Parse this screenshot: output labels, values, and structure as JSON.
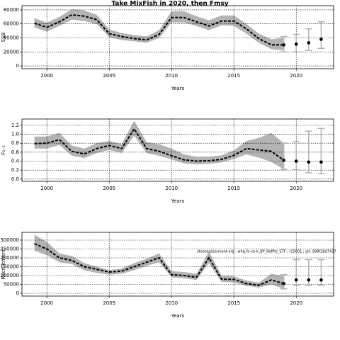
{
  "title": "Take MixFish in 2020, then Fmsy",
  "chart_data": [
    {
      "type": "line",
      "ylabel": "SSB",
      "xlabel": "Years",
      "xlim": [
        1998,
        2023
      ],
      "xticks": [
        2000,
        2005,
        2010,
        2015,
        2020
      ],
      "ylim": [
        -4000,
        86000
      ],
      "yticks": [
        0,
        20000,
        40000,
        60000,
        80000
      ],
      "grid": true,
      "band_color": "#b3b3b3",
      "line_color": "#000000",
      "point_color": "#000000",
      "errbar_color": "#b3b3b3",
      "x": [
        1999,
        2000,
        2001,
        2002,
        2003,
        2004,
        2005,
        2006,
        2007,
        2008,
        2009,
        2010,
        2011,
        2012,
        2013,
        2014,
        2015,
        2016,
        2017,
        2018,
        2019
      ],
      "values": [
        61000,
        55000,
        63000,
        73000,
        71000,
        66000,
        46000,
        42000,
        39000,
        37000,
        45000,
        69000,
        69000,
        63000,
        57000,
        64000,
        64000,
        53000,
        39000,
        30000,
        30000
      ],
      "lower": [
        55000,
        49000,
        57000,
        66000,
        64000,
        60000,
        41000,
        37000,
        35000,
        33000,
        40000,
        62000,
        62000,
        57000,
        51000,
        58000,
        57000,
        46000,
        33000,
        24000,
        22000
      ],
      "upper": [
        68000,
        62000,
        70000,
        81000,
        79000,
        73000,
        52000,
        47000,
        44000,
        42000,
        51000,
        78000,
        78000,
        71000,
        65000,
        72000,
        72000,
        60000,
        46000,
        38000,
        40000
      ],
      "forecast": {
        "x": [
          2019,
          2020,
          2021,
          2022
        ],
        "values": [
          30000,
          31000,
          33000,
          38000
        ],
        "lower": [
          20000,
          20000,
          22000,
          25000
        ],
        "upper": [
          42000,
          45000,
          53000,
          63000
        ]
      }
    },
    {
      "type": "line",
      "ylabel": "F₂₋₅",
      "xlabel": "Years",
      "xlim": [
        1998,
        2023
      ],
      "xticks": [
        2000,
        2005,
        2010,
        2015,
        2020
      ],
      "ylim": [
        -0.05,
        1.34
      ],
      "yticks": [
        {
          "value": 0,
          "label": "0.0"
        },
        0.2,
        0.4,
        0.6,
        0.8,
        {
          "value": 1,
          "label": "1.0"
        },
        1.2
      ],
      "grid": true,
      "band_color": "#b3b3b3",
      "line_color": "#000000",
      "point_color": "#000000",
      "errbar_color": "#b3b3b3",
      "x": [
        1999,
        2000,
        2001,
        2002,
        2003,
        2004,
        2005,
        2006,
        2007,
        2008,
        2009,
        2010,
        2011,
        2012,
        2013,
        2014,
        2015,
        2016,
        2017,
        2018,
        2019
      ],
      "values": [
        0.79,
        0.8,
        0.88,
        0.62,
        0.56,
        0.68,
        0.75,
        0.68,
        1.12,
        0.68,
        0.62,
        0.52,
        0.43,
        0.4,
        0.41,
        0.44,
        0.53,
        0.68,
        0.65,
        0.62,
        0.42
      ],
      "lower": [
        0.68,
        0.68,
        0.76,
        0.52,
        0.47,
        0.58,
        0.65,
        0.58,
        0.97,
        0.58,
        0.52,
        0.44,
        0.35,
        0.33,
        0.34,
        0.37,
        0.45,
        0.55,
        0.48,
        0.38,
        0.22
      ],
      "upper": [
        0.95,
        0.95,
        1.03,
        0.75,
        0.68,
        0.8,
        0.85,
        0.78,
        1.3,
        0.82,
        0.78,
        0.68,
        0.55,
        0.5,
        0.5,
        0.53,
        0.64,
        0.85,
        0.92,
        1.03,
        0.8
      ],
      "forecast": {
        "x": [
          2019,
          2020,
          2021,
          2022
        ],
        "values": [
          0.42,
          0.4,
          0.38,
          0.38
        ],
        "lower": [
          0.22,
          0.21,
          0.14,
          0.12
        ],
        "upper": [
          0.8,
          0.83,
          1.07,
          1.13
        ]
      }
    },
    {
      "type": "line",
      "ylabel": "Recruitment",
      "xlabel": "Years",
      "annotation": "stockassessment.org : whg.fo-ce-k_BP_RefPts_STF ; r15001 ; git: 998f28d7437",
      "xlim": [
        1998,
        2023
      ],
      "xticks": [
        2000,
        2005,
        2010,
        2015,
        2020
      ],
      "ylim": [
        -16000,
        344000
      ],
      "yticks": [
        0,
        50000,
        100000,
        150000,
        200000,
        250000,
        300000
      ],
      "grid": true,
      "band_color": "#b3b3b3",
      "line_color": "#000000",
      "point_color": "#000000",
      "errbar_color": "#b3b3b3",
      "x": [
        1999,
        2000,
        2001,
        2002,
        2003,
        2004,
        2005,
        2006,
        2007,
        2008,
        2009,
        2010,
        2011,
        2012,
        2013,
        2014,
        2015,
        2016,
        2017,
        2018,
        2019
      ],
      "values": [
        280000,
        250000,
        200000,
        185000,
        150000,
        135000,
        120000,
        125000,
        150000,
        175000,
        200000,
        105000,
        100000,
        90000,
        200000,
        80000,
        78000,
        55000,
        45000,
        75000,
        55000
      ],
      "lower": [
        240000,
        215000,
        175000,
        165000,
        130000,
        115000,
        105000,
        110000,
        130000,
        155000,
        175000,
        90000,
        85000,
        75000,
        170000,
        65000,
        60000,
        42000,
        32000,
        50000,
        25000
      ],
      "upper": [
        330000,
        290000,
        225000,
        210000,
        170000,
        150000,
        130000,
        140000,
        170000,
        195000,
        225000,
        125000,
        120000,
        110000,
        235000,
        100000,
        95000,
        72000,
        60000,
        110000,
        95000
      ],
      "forecast": {
        "x": [
          2019,
          2020,
          2021,
          2022
        ],
        "values": [
          55000,
          75000,
          75000,
          75000
        ],
        "lower": [
          25000,
          45000,
          45000,
          45000
        ],
        "upper": [
          105000,
          190000,
          190000,
          190000
        ]
      }
    }
  ]
}
